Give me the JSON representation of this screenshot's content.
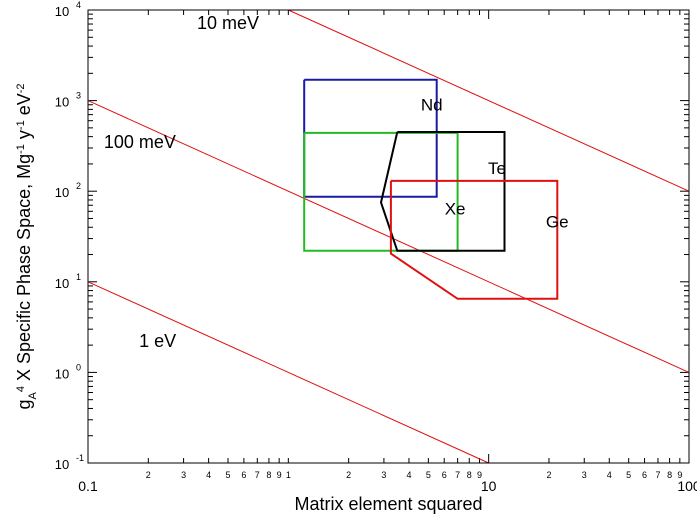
{
  "chart_data": {
    "type": "line",
    "scale": {
      "x": "log",
      "y": "log"
    },
    "xlim": [
      0.1,
      100
    ],
    "ylim": [
      0.1,
      10000
    ],
    "xlabel": "Matrix element squared",
    "ylabel": "g_A^4 X Specific Phase Space, Mg^-1 y^-1 eV^-2",
    "x_major_ticks": [
      {
        "value": 0.1,
        "label": "0.1"
      },
      {
        "value": 10,
        "label": "10"
      },
      {
        "value": 100,
        "label": "100"
      }
    ],
    "x_minor_ticks": [
      {
        "value": 0.2,
        "label": "2"
      },
      {
        "value": 0.3,
        "label": "3"
      },
      {
        "value": 0.4,
        "label": "4"
      },
      {
        "value": 0.5,
        "label": "5"
      },
      {
        "value": 0.6,
        "label": "6"
      },
      {
        "value": 0.7,
        "label": "7"
      },
      {
        "value": 0.8,
        "label": "8"
      },
      {
        "value": 0.9,
        "label": "9"
      },
      {
        "value": 1,
        "label": "1"
      },
      {
        "value": 2,
        "label": "2"
      },
      {
        "value": 3,
        "label": "3"
      },
      {
        "value": 4,
        "label": "4"
      },
      {
        "value": 5,
        "label": "5"
      },
      {
        "value": 6,
        "label": "6"
      },
      {
        "value": 7,
        "label": "7"
      },
      {
        "value": 8,
        "label": "8"
      },
      {
        "value": 9,
        "label": "9"
      },
      {
        "value": 20,
        "label": "2"
      },
      {
        "value": 30,
        "label": "3"
      },
      {
        "value": 40,
        "label": "4"
      },
      {
        "value": 50,
        "label": "5"
      },
      {
        "value": 60,
        "label": "6"
      },
      {
        "value": 70,
        "label": "7"
      },
      {
        "value": 80,
        "label": "8"
      },
      {
        "value": 90,
        "label": "9"
      }
    ],
    "y_major_ticks": [
      {
        "value": 0.1,
        "base": "10",
        "exp": "-1"
      },
      {
        "value": 1,
        "base": "10",
        "exp": "0"
      },
      {
        "value": 10,
        "base": "10",
        "exp": "1"
      },
      {
        "value": 100,
        "base": "10",
        "exp": "2"
      },
      {
        "value": 1000,
        "base": "10",
        "exp": "3"
      },
      {
        "value": 10000,
        "base": "10",
        "exp": "4"
      }
    ],
    "mass_lines": [
      {
        "label": "10 meV",
        "start": [
          1.0,
          10000
        ],
        "end": [
          100,
          100
        ],
        "label_at": [
          0.35,
          6200
        ]
      },
      {
        "label": "100 meV",
        "start": [
          0.1,
          1000
        ],
        "end": [
          100,
          1
        ],
        "label_at": [
          0.12,
          300
        ]
      },
      {
        "label": "1 eV",
        "start": [
          0.1,
          10
        ],
        "end": [
          10,
          0.1
        ],
        "label_at": [
          0.18,
          1.9
        ]
      }
    ],
    "series": [
      {
        "name": "Nd",
        "color": "#1a1aa6",
        "points": [
          [
            1.2,
            1700
          ],
          [
            5.5,
            1700
          ],
          [
            5.5,
            87
          ],
          [
            1.2,
            87
          ],
          [
            1.2,
            1700
          ]
        ],
        "label_at": [
          5.2,
          780
        ]
      },
      {
        "name": "Xe",
        "color": "#22bb22",
        "points": [
          [
            1.2,
            440
          ],
          [
            7.0,
            440
          ],
          [
            7.0,
            22
          ],
          [
            1.2,
            22
          ],
          [
            1.2,
            440
          ]
        ],
        "label_at": [
          6.8,
          55
        ]
      },
      {
        "name": "Te",
        "color": "#000000",
        "points": [
          [
            3.5,
            450
          ],
          [
            12.0,
            450
          ],
          [
            12.0,
            22
          ],
          [
            3.5,
            22
          ],
          [
            2.9,
            75
          ],
          [
            3.5,
            450
          ]
        ],
        "label_at": [
          11.0,
          155
        ]
      },
      {
        "name": "Ge",
        "color": "#e01010",
        "points": [
          [
            3.25,
            130
          ],
          [
            22.0,
            130
          ],
          [
            22.0,
            6.5
          ],
          [
            7.0,
            6.5
          ],
          [
            3.25,
            20.5
          ],
          [
            3.25,
            130
          ]
        ],
        "label_at": [
          22.0,
          40
        ]
      }
    ]
  }
}
